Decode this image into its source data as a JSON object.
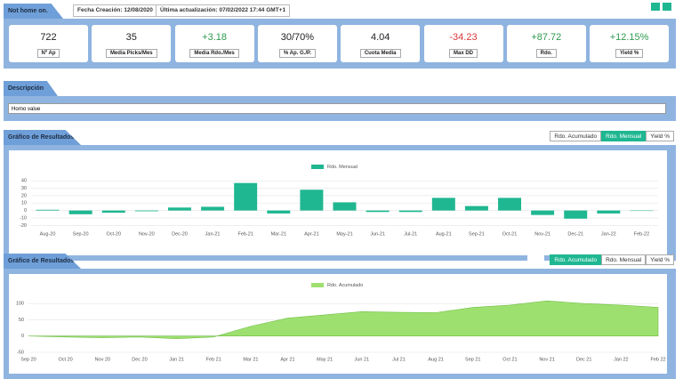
{
  "header": {
    "title": "Not home on.",
    "created": "Fecha Creación: 12/08/2020",
    "updated": "Última actualización: 07/02/2022 17:44 GMT+1"
  },
  "stats": [
    {
      "value": "722",
      "label": "Nº Ap",
      "color": "#222222"
    },
    {
      "value": "35",
      "label": "Media Picks/Mes",
      "color": "#222222"
    },
    {
      "value": "+3.18",
      "label": "Media Rdo./Mes",
      "color": "#2e9a4e"
    },
    {
      "value": "30/70%",
      "label": "% Ap. G./P.",
      "color": "#222222"
    },
    {
      "value": "4.04",
      "label": "Cuota Media",
      "color": "#222222"
    },
    {
      "value": "-34.23",
      "label": "Max DD",
      "color": "#d9383a"
    },
    {
      "value": "+87.72",
      "label": "Rdo.",
      "color": "#2e9a4e"
    },
    {
      "value": "+12.15%",
      "label": "Yield %",
      "color": "#2e9a4e"
    }
  ],
  "description": {
    "title": "Descripción",
    "text": "Horno value"
  },
  "monthly": {
    "title": "Gráfico de Resultados",
    "buttons": [
      "Rdo. Acumulado",
      "Rdo. Mensual",
      "Yield %"
    ],
    "active": 1,
    "chart": {
      "type": "bar",
      "series": [
        {
          "name": "Rdo. Mensual",
          "color": "#1fb791",
          "values": [
            1,
            -5,
            -3,
            -1,
            4,
            5,
            37,
            -4,
            28,
            11,
            -2,
            -2,
            17,
            6,
            17,
            -6,
            -11,
            -4,
            0
          ]
        }
      ],
      "categories": [
        "Aug-20",
        "Sep-20",
        "Oct-20",
        "Nov-20",
        "Dec-20",
        "Jan-21",
        "Feb-21",
        "Mar-21",
        "Apr-21",
        "May-21",
        "Jun-21",
        "Jul-21",
        "Aug-21",
        "Sep-21",
        "Oct-21",
        "Nov-21",
        "Dec-21",
        "Jan-22",
        "Feb-22"
      ],
      "ylim": [
        -22,
        45
      ],
      "yticks": [
        -20,
        -10,
        0,
        10,
        20,
        30,
        40
      ],
      "grid": true
    }
  },
  "cumulative": {
    "title": "Gráfico de Resultados",
    "buttons": [
      "Rdo. Acumulado",
      "Rdo. Mensual",
      "Yield %"
    ],
    "active": 0,
    "chart": {
      "type": "area",
      "series": [
        {
          "name": "Rdo. Acumulado",
          "color": "#9ee070",
          "values": [
            0,
            -3,
            -5,
            -3,
            -8,
            -3,
            30,
            55,
            65,
            75,
            73,
            72,
            88,
            95,
            108,
            100,
            95,
            88
          ]
        }
      ],
      "categories": [
        "Sep 20",
        "Oct 20",
        "Nov 20",
        "Dec 20",
        "Jan 21",
        "Feb 21",
        "Mar 21",
        "Apr 21",
        "May 21",
        "Jun 21",
        "Jul 21",
        "Aug 21",
        "Sep 21",
        "Oct 21",
        "Nov 21",
        "Dec 21",
        "Jan 22",
        "Feb 22"
      ],
      "ylim": [
        -50,
        125
      ],
      "yticks": [
        -50,
        0,
        50,
        100
      ],
      "grid": true
    }
  }
}
